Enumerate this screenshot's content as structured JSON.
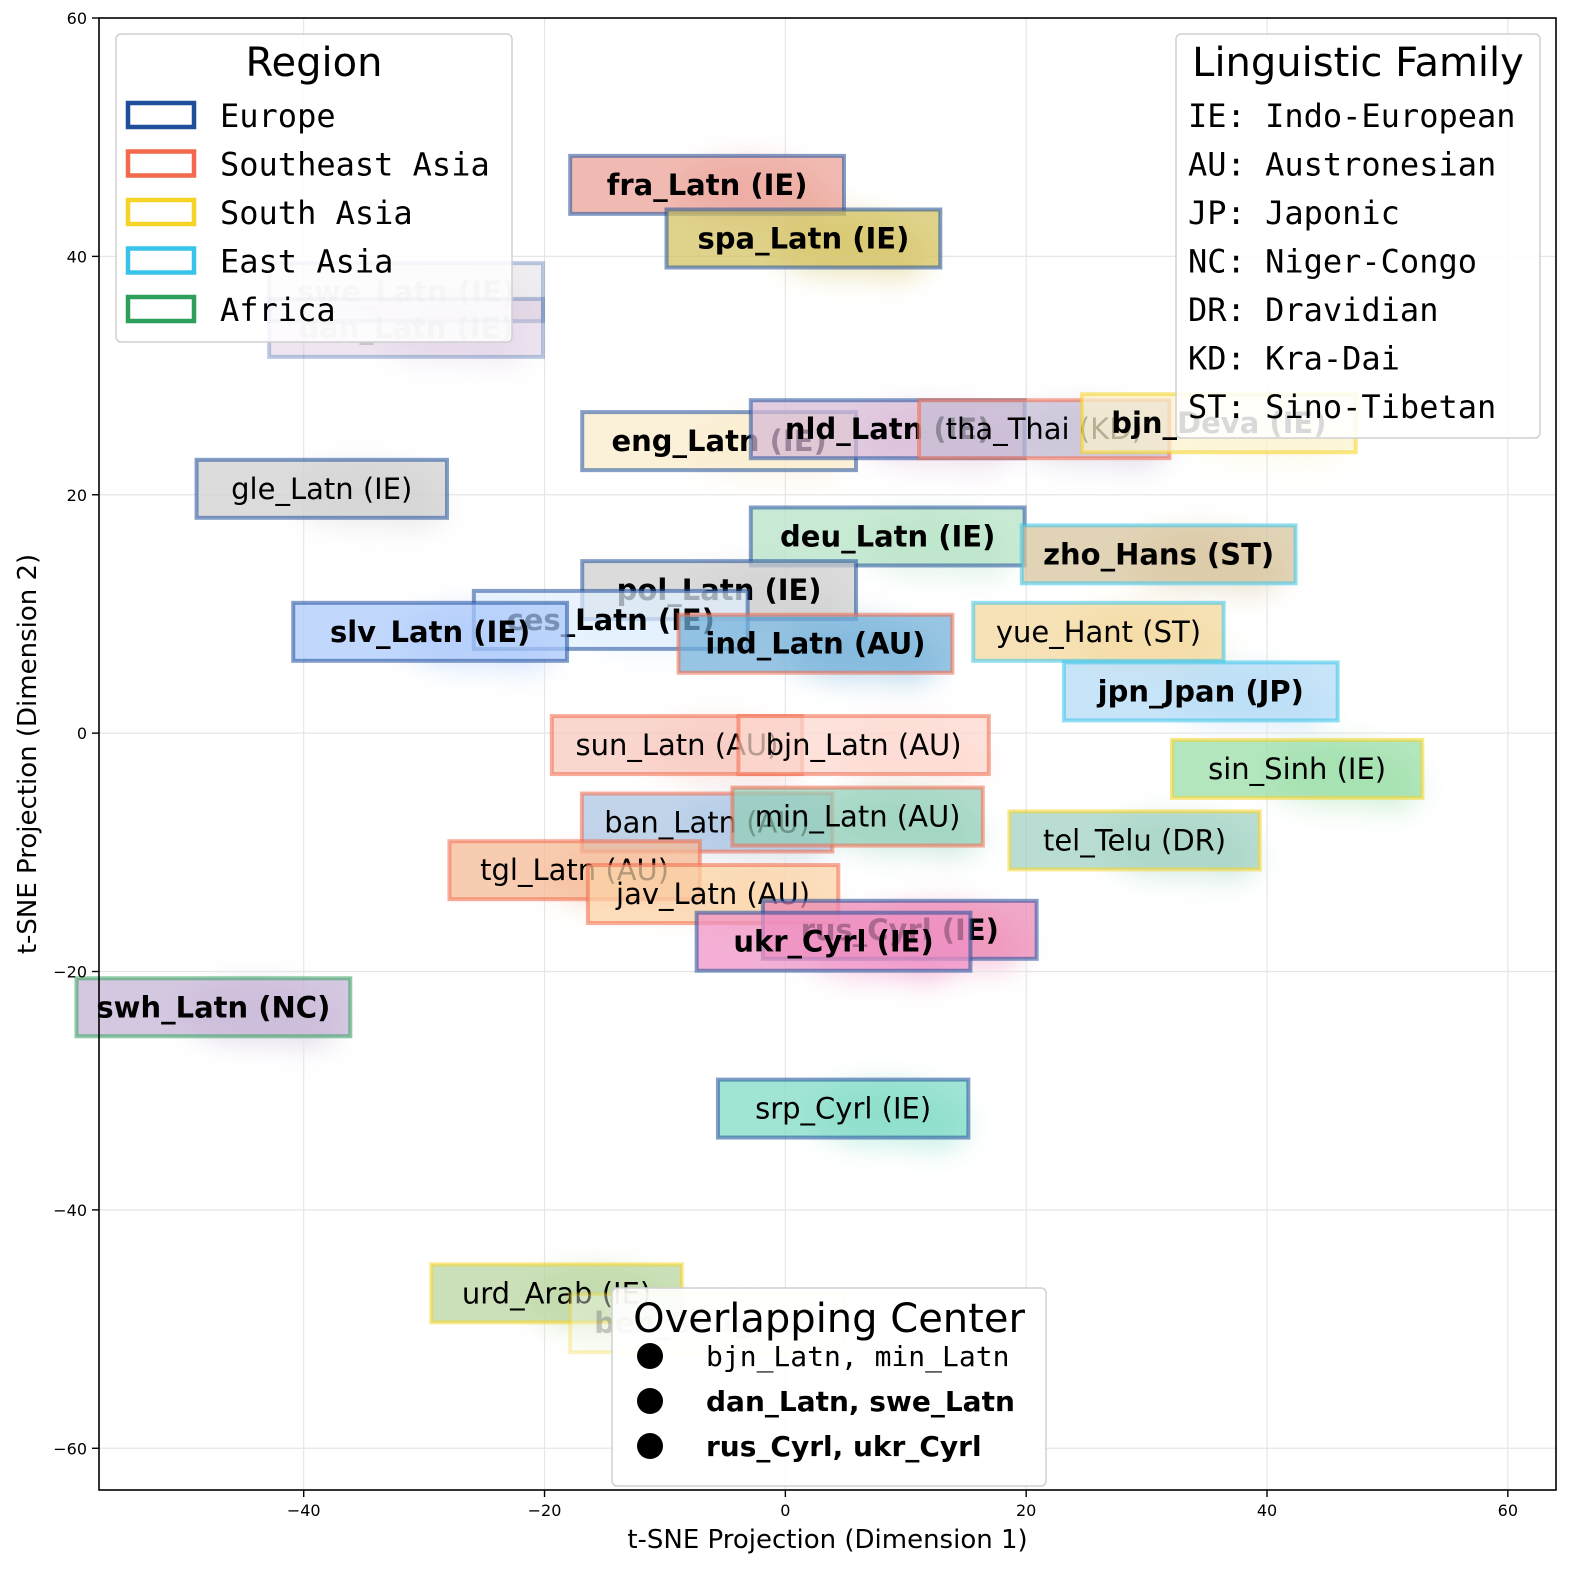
{
  "chart_data": {
    "type": "scatter",
    "xlabel": "t-SNE Projection (Dimension 1)",
    "ylabel": "t-SNE Projection (Dimension 2)",
    "xlim": [
      -57,
      64
    ],
    "ylim": [
      -63.5,
      60
    ],
    "xticks": [
      -40,
      -20,
      0,
      20,
      40,
      60
    ],
    "yticks": [
      -60,
      -40,
      -20,
      0,
      20,
      40,
      60
    ],
    "xtick_labels": [
      "−40",
      "−20",
      "0",
      "20",
      "40",
      "60"
    ],
    "ytick_labels": [
      "−60",
      "−40",
      "−20",
      "0",
      "20",
      "40",
      "60"
    ],
    "grid": true,
    "region_colors": {
      "Europe": "#1f4e9b",
      "Southeast Asia": "#f26a4b",
      "South Asia": "#f5d327",
      "East Asia": "#38c4ea",
      "Africa": "#2e9e5b"
    },
    "labels": [
      {
        "text": "fra_Latn (IE)",
        "x": -6.5,
        "y": 46,
        "region": "Europe",
        "fill": "#ea9f94",
        "bold": true
      },
      {
        "text": "spa_Latn (IE)",
        "x": 1.5,
        "y": 41.5,
        "region": "Europe",
        "fill": "#d2c05d",
        "bold": true
      },
      {
        "text": "swe_Latn (IE)",
        "x": -31.5,
        "y": 37,
        "region": "Europe",
        "fill": "#d7d0da",
        "bold": true,
        "faded": true
      },
      {
        "text": "dan_Latn (IE)",
        "x": -31.5,
        "y": 34,
        "region": "Europe",
        "fill": "#d3bdd9",
        "bold": true,
        "faded": true
      },
      {
        "text": "eng_Latn (IE)",
        "x": -5.5,
        "y": 24.5,
        "region": "Europe",
        "fill": "#faebca",
        "bold": true
      },
      {
        "text": "nld_Latn (IE)",
        "x": 8.5,
        "y": 25.5,
        "region": "Europe",
        "fill": "#d7b8d6",
        "bold": true
      },
      {
        "text": "tha_Thai (KD)",
        "x": 21.5,
        "y": 25.5,
        "region": "Southeast Asia",
        "fill": "#c5bcd4",
        "bold": false
      },
      {
        "text": "bjn_Deva (IE)",
        "x": 36,
        "y": 26,
        "region": "South Asia",
        "fill": "#fbf2cd",
        "bold": true
      },
      {
        "text": "gle_Latn (IE)",
        "x": -38.5,
        "y": 20.5,
        "region": "Europe",
        "fill": "#cfcfcf",
        "bold": false
      },
      {
        "text": "deu_Latn (IE)",
        "x": 8.5,
        "y": 16.5,
        "region": "Europe",
        "fill": "#b3e2c3",
        "bold": true
      },
      {
        "text": "zho_Hans (ST)",
        "x": 31,
        "y": 15,
        "region": "East Asia",
        "fill": "#d6c29a",
        "bold": true
      },
      {
        "text": "pol_Latn (IE)",
        "x": -5.5,
        "y": 12,
        "region": "Europe",
        "fill": "#cdcdcd",
        "bold": true
      },
      {
        "text": "ces_Latn (IE)",
        "x": -14.5,
        "y": 9.5,
        "region": "Europe",
        "fill": "#dfeefd",
        "bold": true
      },
      {
        "text": "slv_Latn (IE)",
        "x": -29.5,
        "y": 8.5,
        "region": "Europe",
        "fill": "#a9c8fb",
        "bold": true
      },
      {
        "text": "ind_Latn (AU)",
        "x": 2.5,
        "y": 7.5,
        "region": "Southeast Asia",
        "fill": "#70afd8",
        "bold": true
      },
      {
        "text": "yue_Hant (ST)",
        "x": 26,
        "y": 8.5,
        "region": "East Asia",
        "fill": "#f2d79a",
        "bold": false
      },
      {
        "text": "jpn_Jpan (JP)",
        "x": 34.5,
        "y": 3.5,
        "region": "East Asia",
        "fill": "#b2d9f5",
        "bold": true
      },
      {
        "text": "sun_Latn (AU)",
        "x": -9,
        "y": -1,
        "region": "Southeast Asia",
        "fill": "#f7c6bb",
        "bold": false
      },
      {
        "text": "bjn_Latn (AU)",
        "x": 6.5,
        "y": -1,
        "region": "Southeast Asia",
        "fill": "#fcd7cd",
        "bold": false
      },
      {
        "text": "sin_Sinh (IE)",
        "x": 42.5,
        "y": -3,
        "region": "South Asia",
        "fill": "#96dca4",
        "bold": false
      },
      {
        "text": "ban_Latn (AU)",
        "x": -6.5,
        "y": -7.5,
        "region": "Southeast Asia",
        "fill": "#a9c3e2",
        "bold": false
      },
      {
        "text": "min_Latn (AU)",
        "x": 6,
        "y": -7,
        "region": "Southeast Asia",
        "fill": "#93cfb8",
        "bold": false
      },
      {
        "text": "tel_Telu (DR)",
        "x": 29,
        "y": -9,
        "region": "South Asia",
        "fill": "#9ed0c0",
        "bold": false
      },
      {
        "text": "tgl_Latn (AU)",
        "x": -17.5,
        "y": -11.5,
        "region": "Southeast Asia",
        "fill": "#f5b993",
        "bold": false
      },
      {
        "text": "jav_Latn (AU)",
        "x": -6,
        "y": -13.5,
        "region": "Southeast Asia",
        "fill": "#fbd3a6",
        "bold": false
      },
      {
        "text": "rus_Cyrl (IE)",
        "x": 9.5,
        "y": -16.5,
        "region": "Europe",
        "fill": "#ec87b3",
        "bold": true
      },
      {
        "text": "ukr_Cyrl (IE)",
        "x": 4,
        "y": -17.5,
        "region": "Europe",
        "fill": "#ee90c5",
        "bold": true
      },
      {
        "text": "swh_Latn (NC)",
        "x": -47.5,
        "y": -23,
        "region": "Africa",
        "fill": "#c3b2d4",
        "bold": true
      },
      {
        "text": "srp_Cyrl (IE)",
        "x": 4.8,
        "y": -31.5,
        "region": "Europe",
        "fill": "#7cd9c4",
        "bold": false
      },
      {
        "text": "urd_Arab (IE)",
        "x": -19,
        "y": -47,
        "region": "South Asia",
        "fill": "#b7d49c",
        "bold": false
      },
      {
        "text": "ben_Beng (IE)",
        "x": -6.5,
        "y": -49.5,
        "region": "South Asia",
        "fill": "#f4f8ea",
        "bold": true,
        "faded": true
      }
    ],
    "legends": {
      "region": {
        "title": "Region",
        "entries": [
          {
            "label": "Europe",
            "color": "#1f4e9b"
          },
          {
            "label": "Southeast Asia",
            "color": "#f26a4b"
          },
          {
            "label": "South Asia",
            "color": "#f5d327"
          },
          {
            "label": "East Asia",
            "color": "#38c4ea"
          },
          {
            "label": "Africa",
            "color": "#2e9e5b"
          }
        ]
      },
      "family": {
        "title": "Linguistic Family",
        "entries": [
          "IE: Indo-European",
          "AU: Austronesian",
          "JP: Japonic",
          "NC: Niger-Congo",
          "DR: Dravidian",
          "KD: Kra-Dai",
          "ST: Sino-Tibetan"
        ]
      },
      "overlap": {
        "title": "Overlapping Center",
        "entries": [
          {
            "pair": "bjn_Latn, min_Latn",
            "bold": false
          },
          {
            "pair": "dan_Latn, swe_Latn",
            "bold": true
          },
          {
            "pair": "rus_Cyrl, ukr_Cyrl",
            "bold": true
          }
        ]
      }
    }
  }
}
